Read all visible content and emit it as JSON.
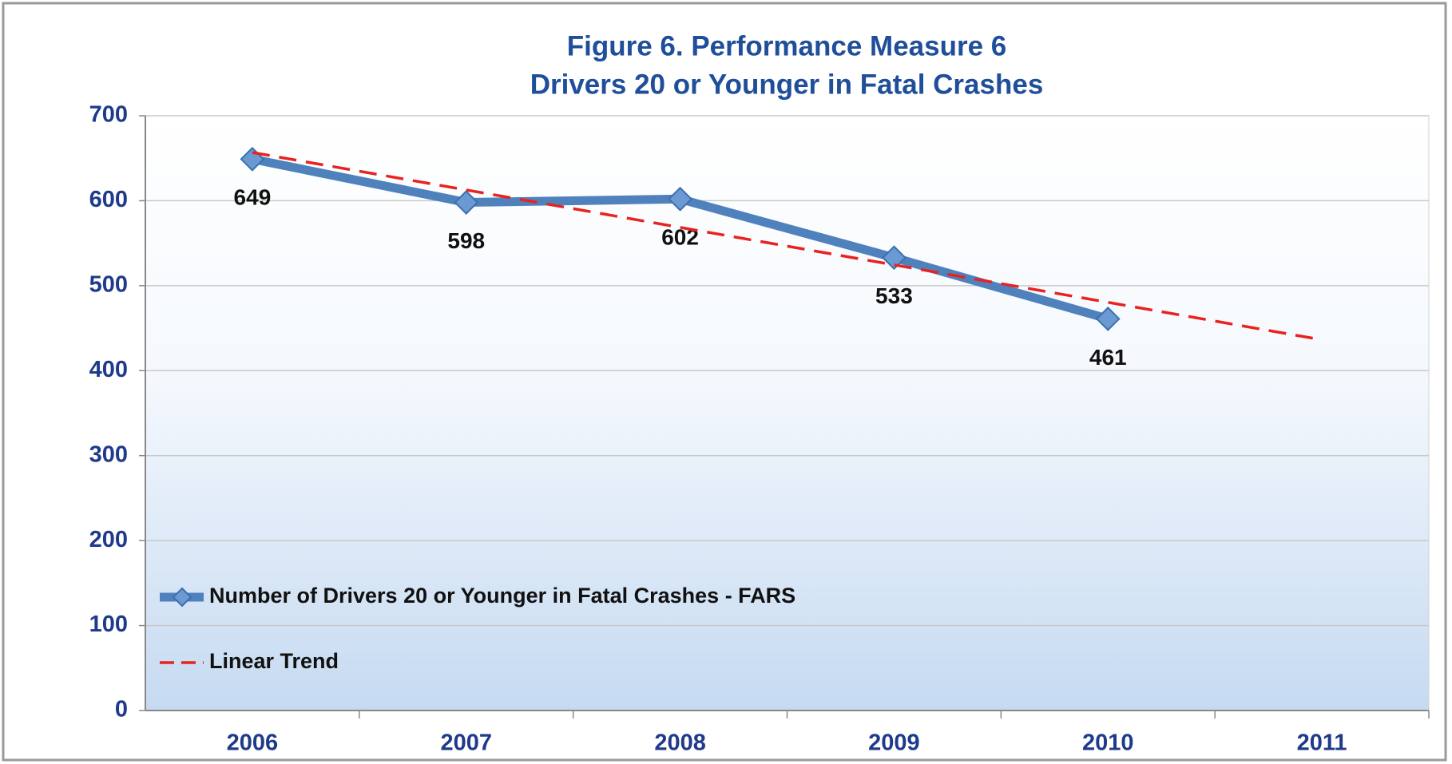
{
  "chart_data": {
    "type": "line",
    "title": [
      "Figure 6. Performance Measure 6",
      "Drivers 20 or Younger in Fatal Crashes"
    ],
    "categories": [
      "2006",
      "2007",
      "2008",
      "2009",
      "2010",
      "2011"
    ],
    "series": [
      {
        "name": "Number of Drivers 20 or Younger in Fatal Crashes - FARS",
        "color": "#4f81bd",
        "style": "solid",
        "markers": true,
        "labels": true,
        "values": [
          649,
          598,
          602,
          533,
          461,
          null
        ]
      },
      {
        "name": "Linear Trend",
        "color": "#e8231f",
        "style": "dashed",
        "markers": false,
        "labels": false,
        "values": [
          656.8,
          612.7,
          568.6,
          524.5,
          480.4,
          436.3
        ]
      }
    ],
    "ylim": [
      0,
      700
    ],
    "yticks": [
      0,
      100,
      200,
      300,
      400,
      500,
      600,
      700
    ],
    "grid": true,
    "legend": "lower left"
  }
}
